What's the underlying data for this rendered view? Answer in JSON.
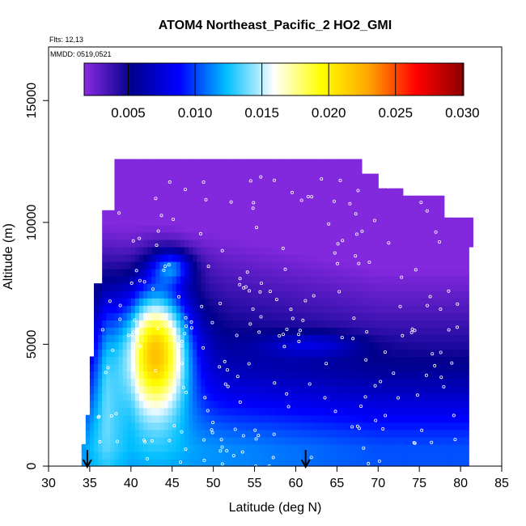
{
  "chart_data": {
    "type": "heatmap",
    "title": "ATOM4 Northeast_Pacific_2 HO2_GMI",
    "info": [
      "Flts: 12,13",
      "MMDD: 0519,0521"
    ],
    "xlabel": "Latitude (deg N)",
    "ylabel": "Altitude (m)",
    "xlim": [
      30,
      85
    ],
    "ylim": [
      0,
      17200
    ],
    "x_ticks": [
      "30",
      "35",
      "40",
      "45",
      "50",
      "55",
      "60",
      "65",
      "70",
      "75",
      "80",
      "85"
    ],
    "y_ticks": [
      "0",
      "5000",
      "10000",
      "15000"
    ],
    "colorbar": {
      "range": [
        0.0017,
        0.0301
      ],
      "ticks": [
        "0.005",
        "0.010",
        "0.015",
        "0.020",
        "0.025",
        "0.030"
      ],
      "colors": [
        "#8a2be2",
        "#00008b",
        "#0000ff",
        "#00bfff",
        "#ffffff",
        "#ffff00",
        "#ffa500",
        "#ff0000",
        "#8b0000"
      ]
    },
    "arrows_lat": [
      34.7,
      61.2
    ],
    "grid": false
  },
  "colors": {
    "arrow": "#000000",
    "points": "#ffffff"
  }
}
